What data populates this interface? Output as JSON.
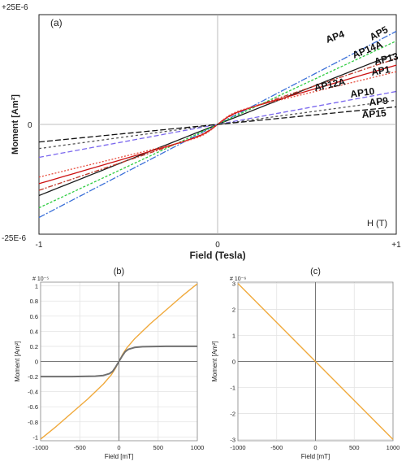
{
  "chart_data": [
    {
      "panel_label": "(a)",
      "type": "line",
      "xlabel": "Field (Tesla)",
      "ylabel": "Moment [Am²]",
      "xlim": [
        -1,
        1
      ],
      "ylim": [
        -2.5e-05,
        2.5e-05
      ],
      "x_tick_labels": [
        "-1",
        "0",
        "+1"
      ],
      "y_tick_labels": [
        "+25E-6",
        "0",
        "-25E-6"
      ],
      "annotation": "H (T)",
      "grid": false,
      "series": [
        {
          "name": "AP4",
          "color": "#3a6fd8",
          "dash": "8,2,2,2",
          "values_at_xlim": [
            -2.12e-05,
            2.12e-05
          ],
          "s_curve": 0.0
        },
        {
          "name": "AP5",
          "color": "#1a1a1a",
          "dash": "",
          "values_at_xlim": [
            -1.62e-05,
            1.62e-05
          ],
          "s_curve": 0.0
        },
        {
          "name": "AP14A",
          "color": "#2ecc40",
          "dash": "3,2",
          "values_at_xlim": [
            -1.9e-05,
            1.9e-05
          ],
          "s_curve": 0.0
        },
        {
          "name": "AP13",
          "color": "#c0392b",
          "dash": "6,2,2,2",
          "values_at_xlim": [
            -1.5e-05,
            1.5e-05
          ],
          "s_curve": 0.25
        },
        {
          "name": "AP1",
          "color": "#cc1111",
          "dash": "",
          "values_at_xlim": [
            -1.35e-05,
            1.35e-05
          ],
          "s_curve": 0.35
        },
        {
          "name": "AP12A",
          "color": "#e74c3c",
          "dash": "2,2",
          "values_at_xlim": [
            -1.2e-05,
            1.2e-05
          ],
          "s_curve": 0.5
        },
        {
          "name": "AP10",
          "color": "#7b68ee",
          "dash": "6,3",
          "values_at_xlim": [
            -7.5e-06,
            7.5e-06
          ],
          "s_curve": 0.0
        },
        {
          "name": "AP9",
          "color": "#555555",
          "dash": "3,3",
          "values_at_xlim": [
            -5.5e-06,
            5.5e-06
          ],
          "s_curve": 0.0
        },
        {
          "name": "AP15",
          "color": "#111111",
          "dash": "7,3",
          "values_at_xlim": [
            -4e-06,
            4e-06
          ],
          "s_curve": 0.0
        }
      ]
    },
    {
      "panel_label": "(b)",
      "type": "line",
      "xlabel": "Field [mT]",
      "ylabel": "Moment [Am²]",
      "exponent_label": "# 10⁻⁵",
      "xlim": [
        -1000,
        1000
      ],
      "ylim": [
        -1.05,
        1.05
      ],
      "x_ticks": [
        -1000,
        -500,
        0,
        500,
        1000
      ],
      "y_ticks": [
        1,
        0.8,
        0.6,
        0.4,
        0.2,
        0,
        -0.2,
        -0.4,
        -0.6,
        -0.8,
        -1
      ],
      "y_tick_labels": [
        "1",
        "0.8",
        "0.6",
        "0.4",
        "0.2",
        "0",
        "-0.2",
        "-0.4",
        "-0.6",
        "-0.8",
        "-1"
      ],
      "grid": true,
      "series": [
        {
          "color": "#f0a93b",
          "x": [
            -1000,
            -800,
            -600,
            -400,
            -200,
            -100,
            -50,
            0,
            50,
            100,
            200,
            400,
            600,
            800,
            1000
          ],
          "values": [
            -1.03,
            -0.86,
            -0.68,
            -0.5,
            -0.3,
            -0.18,
            -0.1,
            0,
            0.1,
            0.18,
            0.3,
            0.5,
            0.68,
            0.86,
            1.03
          ]
        },
        {
          "color": "#707070",
          "x": [
            -1000,
            -600,
            -300,
            -200,
            -120,
            -80,
            -40,
            0,
            40,
            80,
            120,
            200,
            300,
            600,
            1000
          ],
          "values": [
            -0.2,
            -0.2,
            -0.195,
            -0.185,
            -0.16,
            -0.13,
            -0.07,
            0,
            0.07,
            0.13,
            0.16,
            0.185,
            0.195,
            0.2,
            0.2
          ]
        }
      ]
    },
    {
      "panel_label": "(c)",
      "type": "line",
      "xlabel": "Field [mT]",
      "ylabel": "Moment [Am²]",
      "exponent_label": "# 10⁻⁶",
      "xlim": [
        -1000,
        1000
      ],
      "ylim": [
        -3.05,
        3.05
      ],
      "x_ticks": [
        -1000,
        -500,
        0,
        500,
        1000
      ],
      "y_ticks": [
        3,
        2,
        1,
        0,
        -1,
        -2,
        -3
      ],
      "y_tick_labels": [
        "3",
        "2",
        "1",
        "0",
        "-1",
        "-2",
        "-3"
      ],
      "grid": true,
      "series": [
        {
          "color": "#f0a93b",
          "x": [
            -1000,
            1000
          ],
          "values": [
            3,
            -3
          ]
        }
      ]
    }
  ]
}
